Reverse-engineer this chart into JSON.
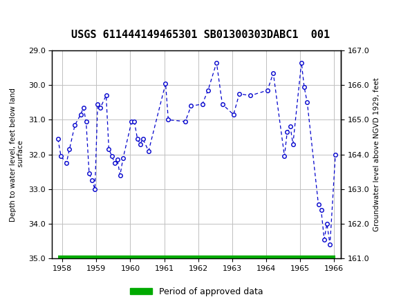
{
  "title": "USGS 611444149465301 SB01300303DABC1  001",
  "ylabel_left": "Depth to water level, feet below land\n surface",
  "ylabel_right": "Groundwater level above NGVD 1929, feet",
  "xlabel": "",
  "ylim_left": [
    35.0,
    29.0
  ],
  "ylim_right": [
    161.0,
    167.0
  ],
  "xlim": [
    1957.7,
    1966.2
  ],
  "yticks_left": [
    29.0,
    30.0,
    31.0,
    32.0,
    33.0,
    34.0,
    35.0
  ],
  "yticks_right": [
    161.0,
    162.0,
    163.0,
    164.0,
    165.0,
    166.0,
    167.0
  ],
  "xticks": [
    1958,
    1959,
    1960,
    1961,
    1962,
    1963,
    1964,
    1965,
    1966
  ],
  "background_color": "#ffffff",
  "header_color": "#1a6b3c",
  "line_color": "#0000cc",
  "marker_color": "#0000cc",
  "approved_color": "#00aa00",
  "data_x": [
    1957.87,
    1957.96,
    1958.12,
    1958.21,
    1958.37,
    1958.54,
    1958.62,
    1958.7,
    1958.79,
    1958.87,
    1958.96,
    1959.04,
    1959.12,
    1959.29,
    1959.37,
    1959.46,
    1959.54,
    1959.62,
    1959.7,
    1959.79,
    1960.04,
    1960.12,
    1960.21,
    1960.29,
    1960.37,
    1960.54,
    1961.04,
    1961.12,
    1961.62,
    1961.79,
    1962.12,
    1962.29,
    1962.54,
    1962.71,
    1963.04,
    1963.21,
    1963.54,
    1964.04,
    1964.21,
    1964.54,
    1964.62,
    1964.71,
    1964.79,
    1965.04,
    1965.12,
    1965.21,
    1965.54,
    1965.62,
    1965.71,
    1965.79,
    1965.88,
    1966.04
  ],
  "data_y": [
    31.55,
    32.05,
    32.25,
    31.85,
    31.15,
    30.85,
    30.65,
    31.05,
    32.55,
    32.75,
    33.0,
    30.55,
    30.65,
    30.3,
    31.85,
    32.05,
    32.25,
    32.15,
    32.6,
    32.1,
    31.05,
    31.05,
    31.55,
    31.7,
    31.55,
    31.9,
    29.95,
    31.0,
    31.05,
    30.6,
    30.55,
    30.15,
    29.35,
    30.55,
    30.85,
    30.25,
    30.3,
    30.15,
    29.65,
    32.05,
    31.35,
    31.2,
    31.7,
    29.35,
    30.05,
    30.5,
    33.45,
    33.6,
    34.45,
    34.0,
    34.6,
    32.0
  ],
  "legend_label": "Period of approved data"
}
